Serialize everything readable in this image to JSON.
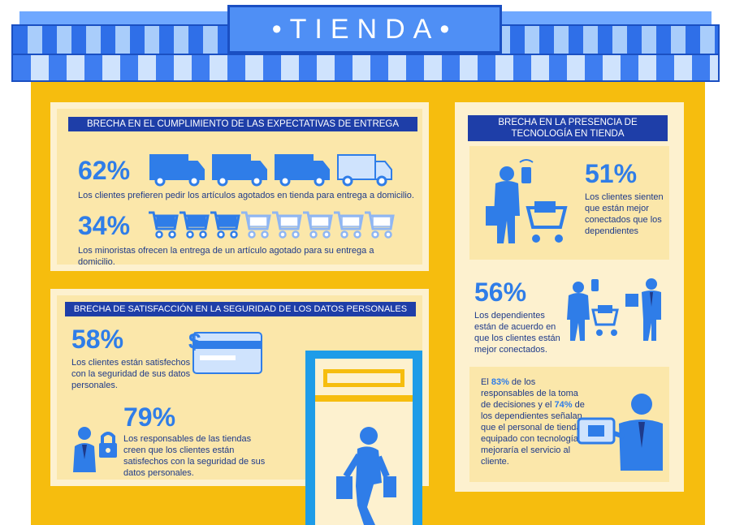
{
  "sign": {
    "title": "•TIENDA•"
  },
  "delivery": {
    "banner": "BRECHA EN EL CUMPLIMIENTO DE LAS EXPECTATIVAS DE ENTREGA",
    "stat1_value": "62%",
    "stat1_text": "Los clientes prefieren pedir los artículos agotados en tienda para entrega a domicilio.",
    "stat2_value": "34%",
    "stat2_text": "Los minoristas ofrecen la entrega de un artículo agotado para su entrega a domicilio.",
    "trucks_highlighted": 3,
    "trucks_total": 4,
    "carts_highlighted": 3,
    "carts_total": 8
  },
  "security": {
    "banner": "BRECHA DE SATISFACCIÓN EN LA SEGURIDAD DE LOS DATOS PERSONALES",
    "stat1_value": "58%",
    "stat1_text": "Los clientes están satisfechos con la seguridad de sus datos personales.",
    "stat2_value": "79%",
    "stat2_text": "Los responsables de las tiendas creen que los clientes están satisfechos con la seguridad de sus datos personales."
  },
  "technology": {
    "banner": "BRECHA EN LA PRESENCIA DE TECNOLOGÍA EN TIENDA",
    "stat1_value": "51%",
    "stat1_text": "Los clientes sienten que están mejor conectados que los dependientes",
    "stat2_value": "56%",
    "stat2_text": "Los dependientes están de acuerdo en que los clientes están mejor conectados.",
    "stat3_prefix": "El ",
    "stat3_value_a": "83%",
    "stat3_mid": " de los responsables de la toma de decisiones y el ",
    "stat3_value_b": "74%",
    "stat3_suffix": " de los dependientes señalan que el personal de tienda equipado con tecnología mejoraría el servicio al cliente."
  },
  "colors": {
    "yellow": "#f6bd0e",
    "cream": "#fdf1cf",
    "navy": "#1e3ea8",
    "blue": "#2f7de8",
    "light_blue": "#a9cdfb"
  },
  "icons": [
    "truck-icon",
    "cart-icon",
    "credit-card-icon",
    "padlock-icon",
    "smartphone-icon",
    "shopper-icon",
    "staff-icon",
    "tablet-icon",
    "walking-shopper-icon"
  ]
}
